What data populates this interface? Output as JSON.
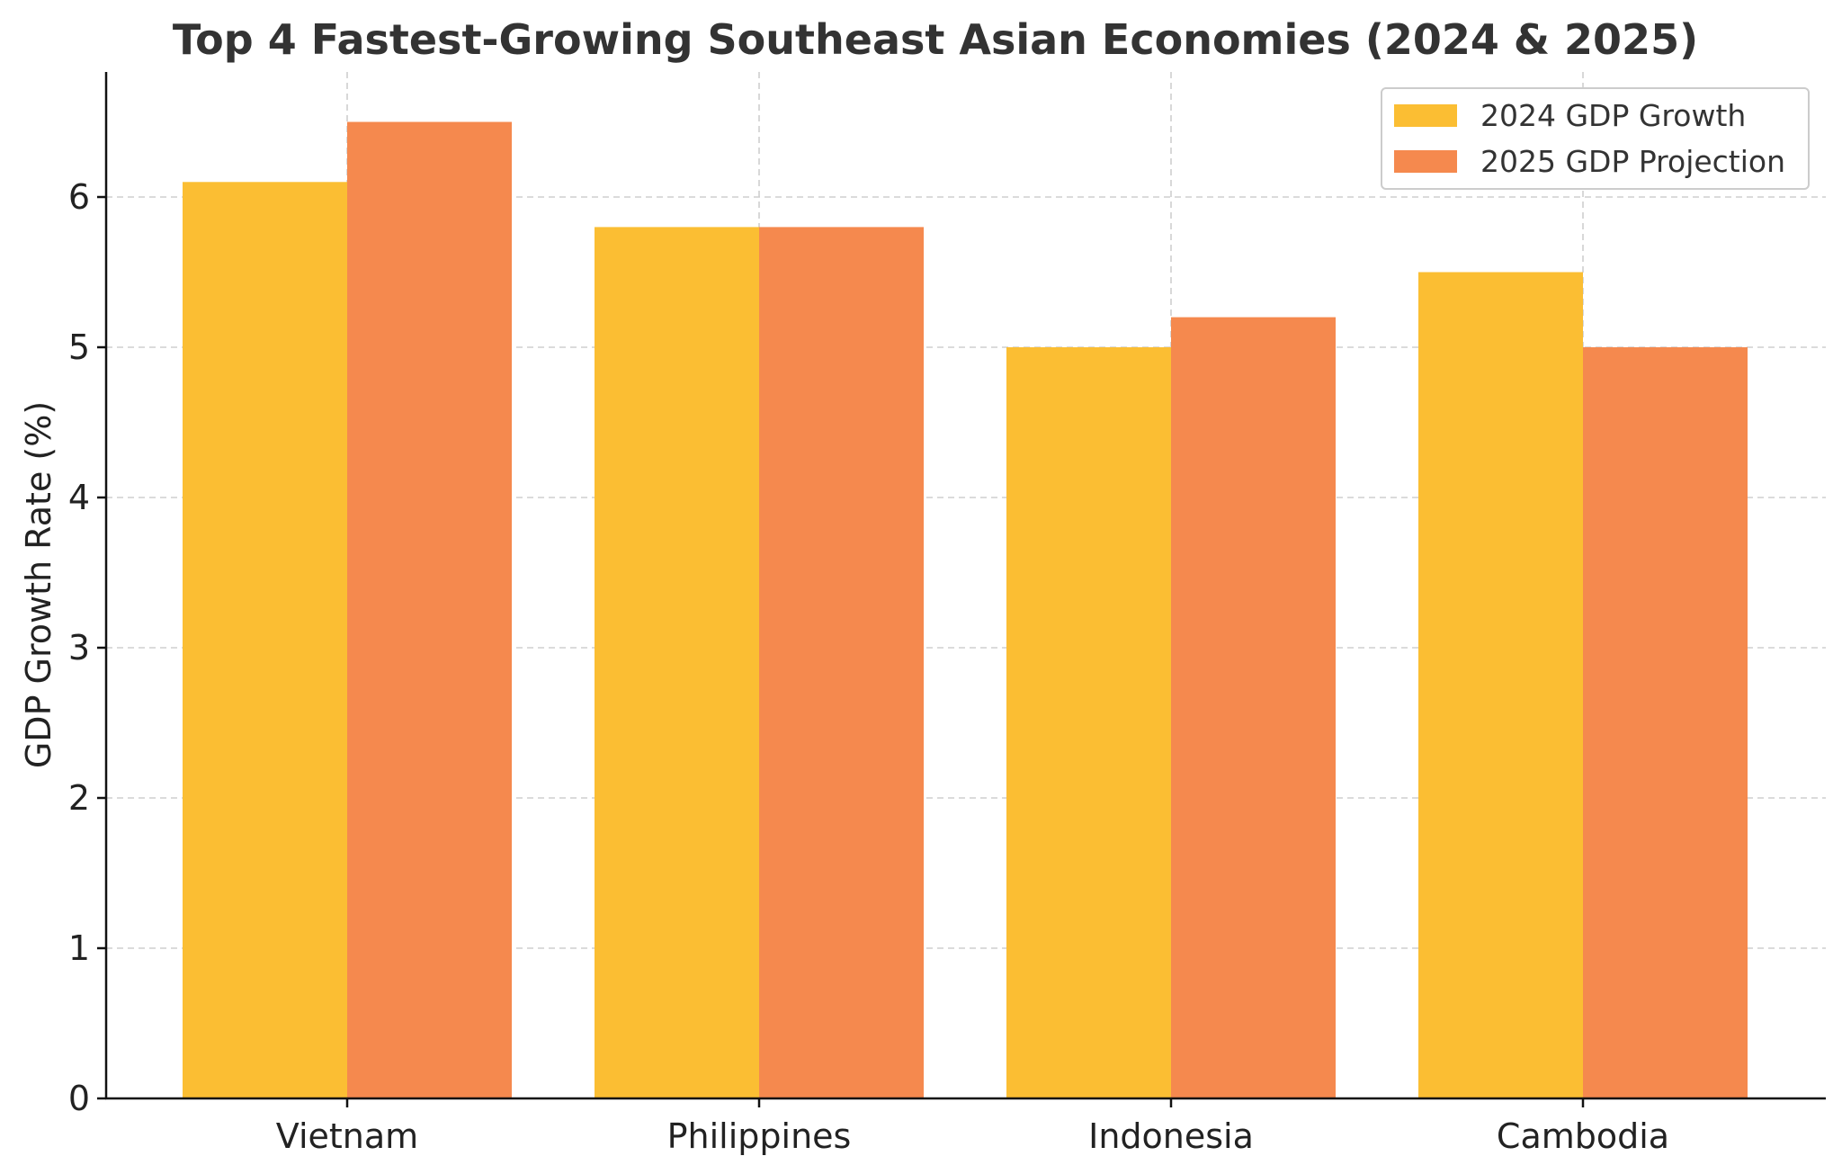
{
  "chart_data": {
    "type": "bar",
    "title": "Top 4 Fastest-Growing Southeast Asian Economies (2024 & 2025)",
    "xlabel": "",
    "ylabel": "GDP Growth Rate (%)",
    "categories": [
      "Vietnam",
      "Philippines",
      "Indonesia",
      "Cambodia"
    ],
    "series": [
      {
        "name": "2024 GDP Growth",
        "color": "#FBBE33",
        "values": [
          6.1,
          5.8,
          5.0,
          5.5
        ]
      },
      {
        "name": "2025 GDP Projection",
        "color": "#F5894E",
        "values": [
          6.5,
          5.8,
          5.2,
          5.0
        ]
      }
    ],
    "ylim": [
      0,
      6.82
    ],
    "yticks": [
      0,
      1,
      2,
      3,
      4,
      5,
      6
    ],
    "grid": true,
    "legend_position": "top-right"
  }
}
